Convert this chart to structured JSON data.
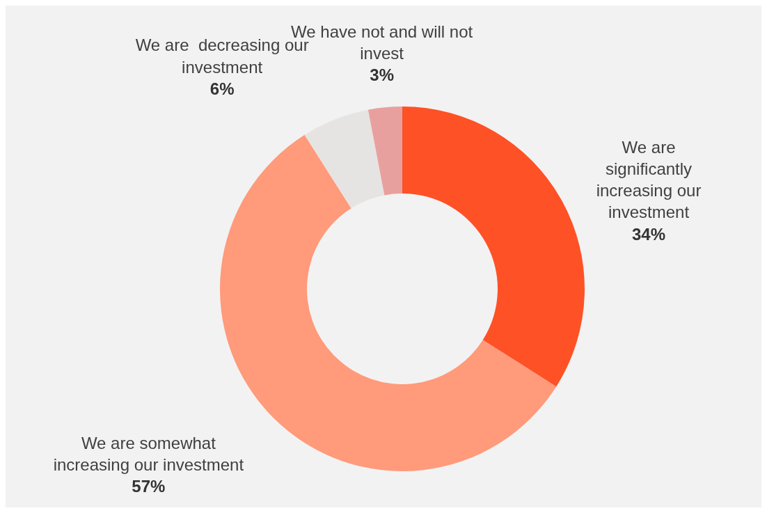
{
  "chart_data": {
    "type": "donut",
    "categories": [
      "We are significantly increasing our investment",
      "We are somewhat increasing our investment",
      "We are  decreasing our investment",
      "We have not and will not invest"
    ],
    "values": [
      34,
      57,
      6,
      3
    ],
    "value_labels": [
      "34%",
      "57%",
      "6%",
      "3%"
    ],
    "colors": [
      "#ff5126",
      "#ff9a7b",
      "#e6e4e2",
      "#e8a09e"
    ],
    "legend": false
  }
}
